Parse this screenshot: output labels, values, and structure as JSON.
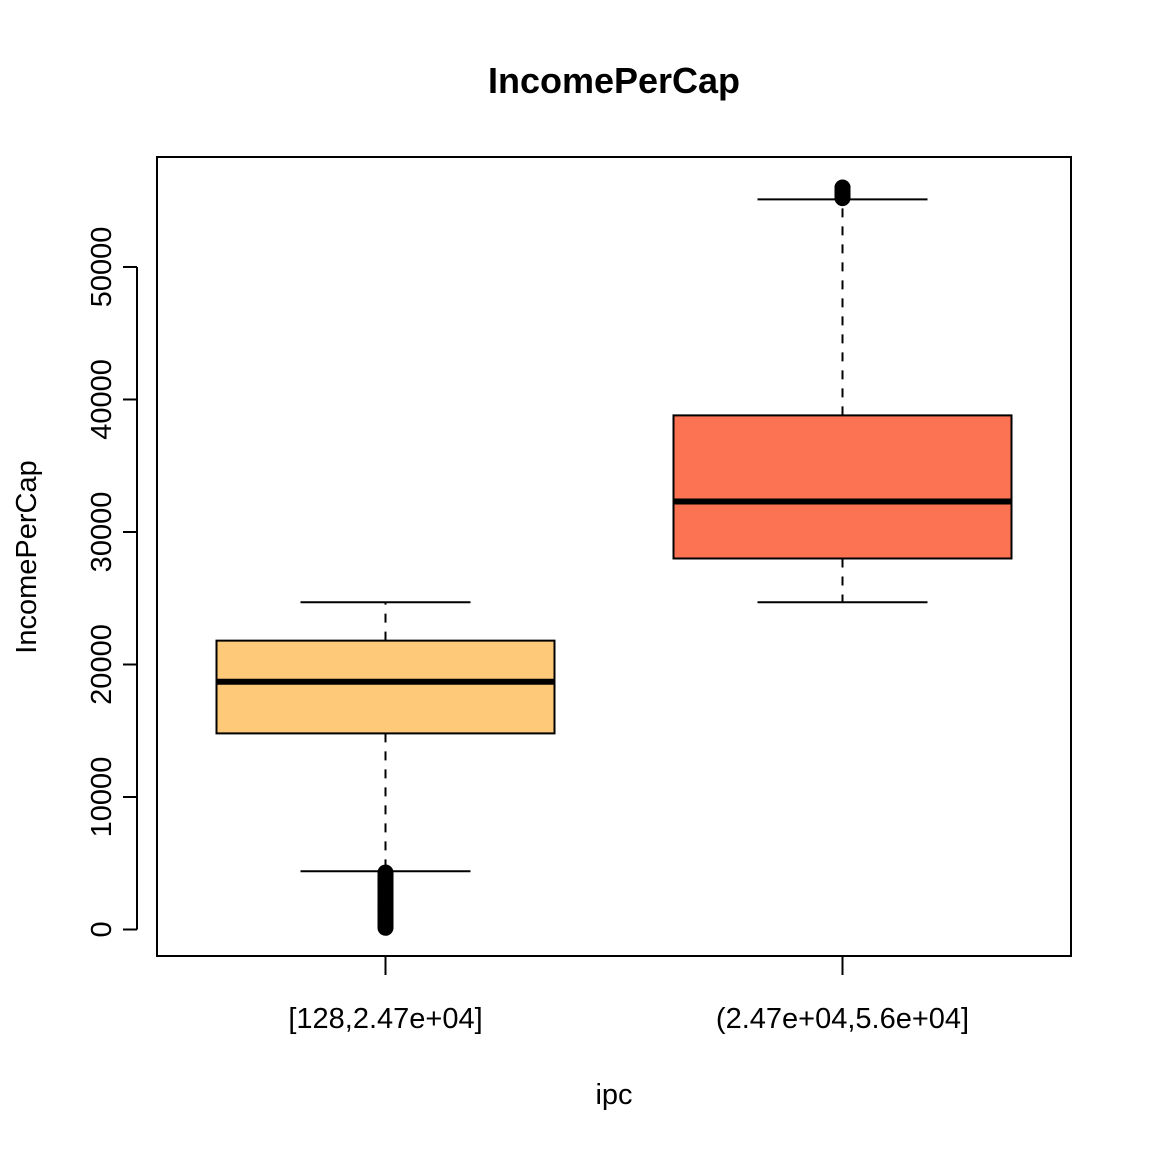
{
  "chart_data": {
    "type": "boxplot",
    "title": "IncomePerCap",
    "xlabel": "ipc",
    "ylabel": "IncomePerCap",
    "ylim": [
      -2000,
      58300
    ],
    "yticks": [
      0,
      10000,
      20000,
      30000,
      40000,
      50000
    ],
    "categories": [
      "[128,2.47e+04]",
      "(2.47e+04,5.6e+04]"
    ],
    "boxes": [
      {
        "category": "[128,2.47e+04]",
        "color": "#FEC979",
        "whisker_low": 4400,
        "q1": 14800,
        "median": 18700,
        "q3": 21800,
        "whisker_high": 24700,
        "outliers_low_range": [
          128,
          4300
        ],
        "outliers_high_range": null
      },
      {
        "category": "(2.47e+04,5.6e+04]",
        "color": "#FB7352",
        "whisker_low": 24700,
        "q1": 28000,
        "median": 32300,
        "q3": 38800,
        "whisker_high": 55100,
        "outliers_low_range": null,
        "outliers_high_range": [
          55200,
          56000
        ]
      }
    ],
    "grid": false,
    "legend": "none"
  }
}
